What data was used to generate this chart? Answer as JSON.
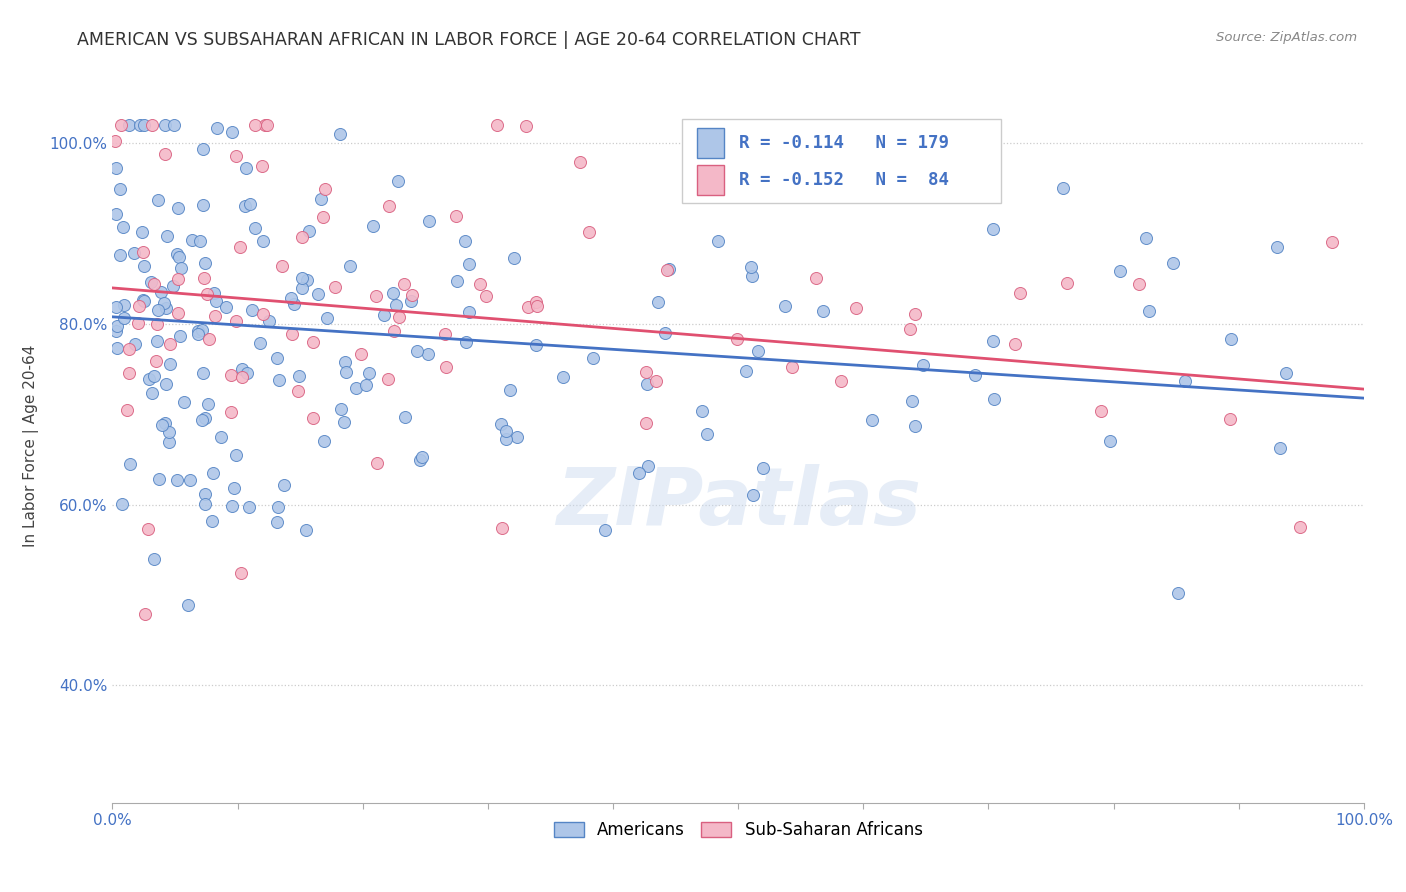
{
  "title": "AMERICAN VS SUBSAHARAN AFRICAN IN LABOR FORCE | AGE 20-64 CORRELATION CHART",
  "source": "Source: ZipAtlas.com",
  "ylabel": "In Labor Force | Age 20-64",
  "xlim": [
    0.0,
    1.0
  ],
  "ylim": [
    0.27,
    1.06
  ],
  "x_ticks": [
    0.0,
    0.1,
    0.2,
    0.3,
    0.4,
    0.5,
    0.6,
    0.7,
    0.8,
    0.9,
    1.0
  ],
  "x_tick_labels_show": [
    "0.0%",
    "",
    "",
    "",
    "",
    "",
    "",
    "",
    "",
    "",
    "100.0%"
  ],
  "y_ticks": [
    0.4,
    0.6,
    0.8,
    1.0
  ],
  "y_tick_labels": [
    "40.0%",
    "60.0%",
    "80.0%",
    "100.0%"
  ],
  "american_color": "#aec6e8",
  "american_edge_color": "#5585c5",
  "african_color": "#f4b8c8",
  "african_edge_color": "#d96080",
  "american_R": -0.114,
  "american_N": 179,
  "african_R": -0.152,
  "african_N": 84,
  "trend_american_color": "#4472c4",
  "trend_african_color": "#e05070",
  "watermark": "ZIPatlas",
  "legend_label_american": "Americans",
  "legend_label_african": "Sub-Saharan Africans",
  "background_color": "#ffffff",
  "grid_color": "#cccccc",
  "trend_am_start": 0.808,
  "trend_am_end": 0.718,
  "trend_af_start": 0.84,
  "trend_af_end": 0.728
}
